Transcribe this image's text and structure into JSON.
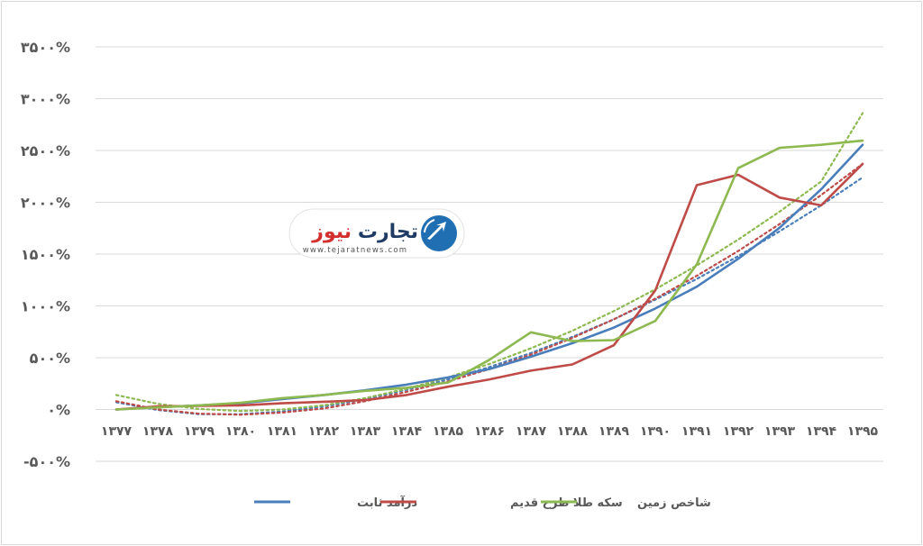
{
  "chart_data": {
    "type": "line",
    "categories": [
      "۱۳۷۷",
      "۱۳۷۸",
      "۱۳۷۹",
      "۱۳۸۰",
      "۱۳۸۱",
      "۱۳۸۲",
      "۱۳۸۳",
      "۱۳۸۴",
      "۱۳۸۵",
      "۱۳۸۶",
      "۱۳۸۷",
      "۱۳۸۸",
      "۱۳۸۹",
      "۱۳۹۰",
      "۱۳۹۱",
      "۱۳۹۲",
      "۱۳۹۳",
      "۱۳۹۴",
      "۱۳۹۵"
    ],
    "ylim": [
      -500,
      3500
    ],
    "yticks": [
      -500,
      0,
      500,
      1000,
      1500,
      2000,
      2500,
      3000,
      3500
    ],
    "ytick_labels": [
      "-۵۰۰%",
      "۰%",
      "۵۰۰%",
      "۱۰۰۰%",
      "۱۵۰۰%",
      "۲۰۰۰%",
      "۲۵۰۰%",
      "۳۰۰۰%",
      "۳۵۰۰%"
    ],
    "grid": true,
    "legend_position": "bottom",
    "series": [
      {
        "name": "درآمد ثابت",
        "color": "#4a7ebb",
        "values": [
          0,
          22,
          40,
          60,
          100,
          140,
          185,
          240,
          310,
          390,
          510,
          640,
          790,
          975,
          1185,
          1455,
          1755,
          2125,
          2555
        ]
      },
      {
        "name": "سکه طلا طرح قدیم",
        "color": "#be4b48",
        "values": [
          0,
          30,
          35,
          40,
          60,
          75,
          90,
          140,
          220,
          290,
          375,
          435,
          620,
          1150,
          2165,
          2265,
          2045,
          1970,
          2370
        ]
      },
      {
        "name": "شاخص زمین",
        "color": "#8db950",
        "values": [
          0,
          20,
          40,
          65,
          110,
          140,
          180,
          210,
          260,
          480,
          745,
          660,
          670,
          855,
          1400,
          2330,
          2525,
          2555,
          2595
        ]
      }
    ],
    "trendlines": [
      {
        "series": "درآمد ثابت",
        "type": "polynomial",
        "color": "#4a7ebb",
        "values": [
          70,
          -5,
          -45,
          -45,
          -20,
          30,
          100,
          190,
          290,
          410,
          545,
          700,
          870,
          1060,
          1260,
          1480,
          1720,
          1970,
          2240
        ]
      },
      {
        "series": "سکه طلا طرح قدیم",
        "type": "polynomial",
        "color": "#be4b48",
        "values": [
          80,
          0,
          -40,
          -50,
          -30,
          10,
          80,
          170,
          270,
          390,
          530,
          690,
          870,
          1070,
          1290,
          1530,
          1790,
          2070,
          2370
        ]
      },
      {
        "series": "شاخص زمین",
        "type": "polynomial",
        "color": "#8db950",
        "values": [
          140,
          55,
          5,
          -15,
          0,
          40,
          110,
          200,
          310,
          440,
          590,
          760,
          950,
          1160,
          1390,
          1640,
          1910,
          2200,
          2860
        ]
      }
    ]
  },
  "logo": {
    "name": "تجارت نیوز",
    "name_part1": "تجارت",
    "name_part2": "نیوز",
    "url": "www.tejaratnews.com",
    "colors": {
      "dark": "#1f3b63",
      "red": "#d32f2f",
      "blue": "#1f6fb2"
    }
  }
}
